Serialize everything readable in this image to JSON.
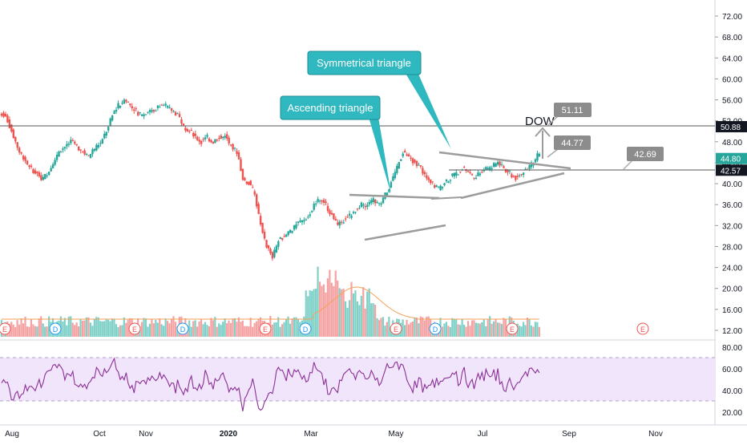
{
  "chart_data": {
    "type": "candlestick",
    "symbol": "DOW",
    "price_axis": {
      "ticks": [
        "72.00",
        "68.00",
        "64.00",
        "60.00",
        "56.00",
        "52.00",
        "48.00",
        "44.00",
        "40.00",
        "36.00",
        "32.00",
        "28.00",
        "24.00",
        "20.00",
        "16.00",
        "12.00"
      ],
      "range": [
        10,
        74
      ]
    },
    "rsi_axis": {
      "ticks": [
        "80.00",
        "60.00",
        "40.00",
        "20.00"
      ],
      "range": [
        12,
        86
      ],
      "band": [
        30,
        70
      ]
    },
    "time_axis": [
      "Aug",
      "Oct",
      "Nov",
      "2020",
      "Mar",
      "May",
      "Jul",
      "Sep",
      "Nov"
    ],
    "levels": [
      {
        "value": 50.88,
        "label": "50.88",
        "color": "#131722"
      },
      {
        "value": 44.8,
        "label": "44.80",
        "color": "#26a69a"
      },
      {
        "value": 42.57,
        "label": "42.57",
        "color": "#131722"
      }
    ],
    "callouts": [
      {
        "text": "Symmetrical triangle"
      },
      {
        "text": "Ascending triangle"
      }
    ],
    "targets": [
      {
        "value": 51.11,
        "label": "51.11"
      },
      {
        "value": 44.77,
        "label": "44.77"
      },
      {
        "value": 42.69,
        "label": "42.69"
      }
    ],
    "close_series": [
      53,
      50,
      47,
      45,
      43,
      42,
      41,
      42,
      44,
      46,
      47,
      48,
      47,
      46,
      45,
      47,
      48,
      50,
      53,
      55,
      56,
      55,
      54,
      53,
      54,
      54,
      55,
      55,
      54,
      53,
      51,
      50,
      49,
      48,
      49,
      48,
      49,
      49,
      47,
      46,
      41,
      40,
      38,
      32,
      28,
      26,
      29,
      30,
      31,
      32,
      33,
      34,
      36,
      37,
      36,
      34,
      32,
      33,
      34,
      35,
      36,
      36,
      37,
      36,
      38,
      40,
      43,
      46,
      45,
      44,
      43,
      41,
      40,
      39,
      40,
      41,
      42,
      43,
      42,
      41,
      42,
      43,
      43,
      44,
      43,
      42,
      41,
      42,
      43,
      44,
      46
    ],
    "events": [
      "E",
      "D",
      "E",
      "D",
      "E",
      "D",
      "E",
      "D",
      "E"
    ]
  }
}
